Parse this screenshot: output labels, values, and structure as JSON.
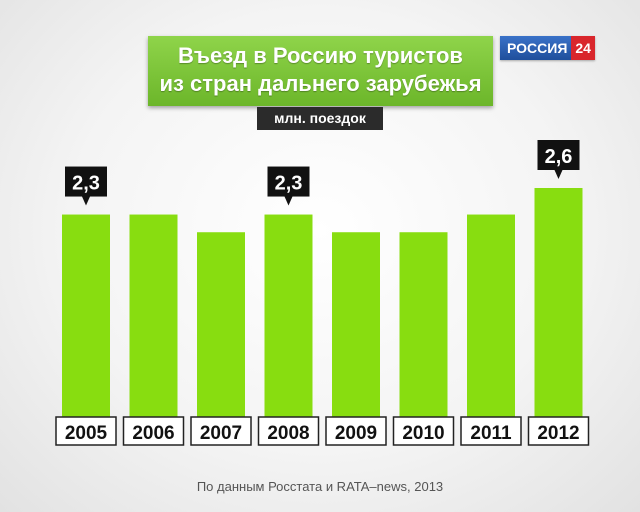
{
  "header": {
    "title_line1": "Въезд в Россию туристов",
    "title_line2": "из стран дальнего зарубежья",
    "unit": "млн. поездок"
  },
  "logo": {
    "text1": "РОССИЯ",
    "text2": "24"
  },
  "footer": {
    "source": "По данным Росстата и RATA–news, 2013"
  },
  "colors": {
    "bar": "#88dd10",
    "label_bg": "#111111",
    "year_box_border": "#222222"
  },
  "chart_data": {
    "type": "bar",
    "title": "Въезд в Россию туристов из стран дальнего зарубежья",
    "ylabel": "млн. поездок",
    "categories": [
      "2005",
      "2006",
      "2007",
      "2008",
      "2009",
      "2010",
      "2011",
      "2012"
    ],
    "values": [
      2.3,
      2.3,
      2.1,
      2.3,
      2.1,
      2.1,
      2.3,
      2.6
    ],
    "data_labels": [
      "2,3",
      "",
      "",
      "2,3",
      "",
      "",
      "",
      "2,6"
    ],
    "ylim": [
      0,
      2.6
    ],
    "grid": false,
    "legend": "none"
  }
}
